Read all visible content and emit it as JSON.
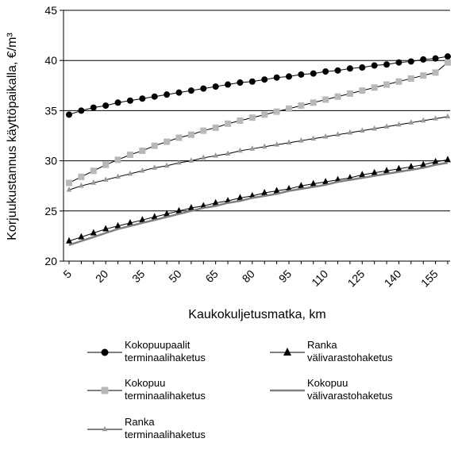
{
  "chart_data": {
    "type": "line",
    "xlabel": "Kaukokuljetusmatka, km",
    "ylabel": "Korjuukustannus käyttöpaikalla, €/m³",
    "ylim": [
      20,
      45
    ],
    "xlim": [
      5,
      160
    ],
    "yticks": [
      "20",
      "25",
      "30",
      "35",
      "40",
      "45"
    ],
    "xticks": [
      "5",
      "20",
      "35",
      "50",
      "65",
      "80",
      "95",
      "110",
      "125",
      "140",
      "155"
    ],
    "xtick_values": [
      5,
      20,
      35,
      50,
      65,
      80,
      95,
      110,
      125,
      140,
      155
    ],
    "grid": "horizontal",
    "legend_position": "bottom",
    "series": [
      {
        "name": "Kokopuupaalit terminaalihaketus",
        "marker": "circle",
        "color": "#000000",
        "line_color": "#000000",
        "x": [
          5,
          10,
          15,
          20,
          25,
          30,
          35,
          40,
          45,
          50,
          55,
          60,
          65,
          70,
          75,
          80,
          85,
          90,
          95,
          100,
          105,
          110,
          115,
          120,
          125,
          130,
          135,
          140,
          145,
          150,
          155,
          160
        ],
        "values": [
          34.6,
          35.0,
          35.3,
          35.5,
          35.8,
          36.0,
          36.2,
          36.4,
          36.6,
          36.8,
          37.0,
          37.2,
          37.4,
          37.6,
          37.8,
          37.9,
          38.1,
          38.3,
          38.4,
          38.6,
          38.7,
          38.9,
          39.0,
          39.2,
          39.3,
          39.5,
          39.6,
          39.8,
          39.9,
          40.1,
          40.2,
          40.4
        ]
      },
      {
        "name": "Kokopuu terminaalihaketus",
        "marker": "square",
        "color": "#b8b8b8",
        "line_color": "#000000",
        "x": [
          5,
          10,
          15,
          20,
          25,
          30,
          35,
          40,
          45,
          50,
          55,
          60,
          65,
          70,
          75,
          80,
          85,
          90,
          95,
          100,
          105,
          110,
          115,
          120,
          125,
          130,
          135,
          140,
          145,
          150,
          155,
          160
        ],
        "values": [
          27.8,
          28.4,
          29.0,
          29.6,
          30.1,
          30.6,
          31.0,
          31.5,
          31.9,
          32.3,
          32.6,
          33.0,
          33.3,
          33.7,
          34.0,
          34.3,
          34.6,
          34.9,
          35.2,
          35.5,
          35.8,
          36.1,
          36.4,
          36.7,
          37.0,
          37.3,
          37.6,
          37.9,
          38.2,
          38.5,
          38.8,
          39.8
        ]
      },
      {
        "name": "Ranka terminaalihaketus",
        "marker": "triangle",
        "color": "#999999",
        "line_color": "#000000",
        "x": [
          5,
          10,
          15,
          20,
          25,
          30,
          35,
          40,
          45,
          50,
          55,
          60,
          65,
          70,
          75,
          80,
          85,
          90,
          95,
          100,
          105,
          110,
          115,
          120,
          125,
          130,
          135,
          140,
          145,
          150,
          155,
          160
        ],
        "values": [
          27.1,
          27.5,
          27.8,
          28.1,
          28.4,
          28.7,
          29.0,
          29.3,
          29.5,
          29.8,
          30.0,
          30.3,
          30.5,
          30.7,
          31.0,
          31.2,
          31.4,
          31.6,
          31.8,
          32.0,
          32.2,
          32.4,
          32.6,
          32.8,
          33.0,
          33.2,
          33.4,
          33.6,
          33.8,
          34.0,
          34.2,
          34.4
        ]
      },
      {
        "name": "Ranka välivarastohaketus",
        "marker": "triangle",
        "color": "#000000",
        "line_color": "#000000",
        "x": [
          5,
          10,
          15,
          20,
          25,
          30,
          35,
          40,
          45,
          50,
          55,
          60,
          65,
          70,
          75,
          80,
          85,
          90,
          95,
          100,
          105,
          110,
          115,
          120,
          125,
          130,
          135,
          140,
          145,
          150,
          155,
          160
        ],
        "values": [
          22.0,
          22.4,
          22.8,
          23.2,
          23.5,
          23.8,
          24.1,
          24.4,
          24.7,
          25.0,
          25.3,
          25.5,
          25.8,
          26.0,
          26.3,
          26.5,
          26.8,
          27.0,
          27.2,
          27.5,
          27.7,
          27.9,
          28.1,
          28.3,
          28.6,
          28.8,
          29.0,
          29.2,
          29.4,
          29.6,
          29.9,
          30.1
        ]
      },
      {
        "name": "Kokopuu välivarastohaketus",
        "marker": "none",
        "color": "#808080",
        "line_color": "#808080",
        "x": [
          5,
          10,
          15,
          20,
          25,
          30,
          35,
          40,
          45,
          50,
          55,
          60,
          65,
          70,
          75,
          80,
          85,
          90,
          95,
          100,
          105,
          110,
          115,
          120,
          125,
          130,
          135,
          140,
          145,
          150,
          155,
          160
        ],
        "values": [
          21.6,
          22.0,
          22.4,
          22.8,
          23.2,
          23.5,
          23.8,
          24.1,
          24.4,
          24.7,
          25.0,
          25.3,
          25.5,
          25.8,
          26.0,
          26.3,
          26.5,
          26.7,
          27.0,
          27.2,
          27.4,
          27.6,
          27.9,
          28.1,
          28.3,
          28.5,
          28.7,
          28.9,
          29.1,
          29.3,
          29.6,
          29.8
        ]
      }
    ],
    "legend": [
      {
        "line1": "Kokopuupaalit",
        "line2": "terminaalihaketus",
        "series": 0
      },
      {
        "line1": "Kokopuu",
        "line2": "terminaalihaketus",
        "series": 1
      },
      {
        "line1": "Ranka",
        "line2": "terminaalihaketus",
        "series": 2
      },
      {
        "line1": "Ranka",
        "line2": "välivarastohaketus",
        "series": 3
      },
      {
        "line1": "Kokopuu",
        "line2": "välivarastohaketus",
        "series": 4
      }
    ]
  }
}
